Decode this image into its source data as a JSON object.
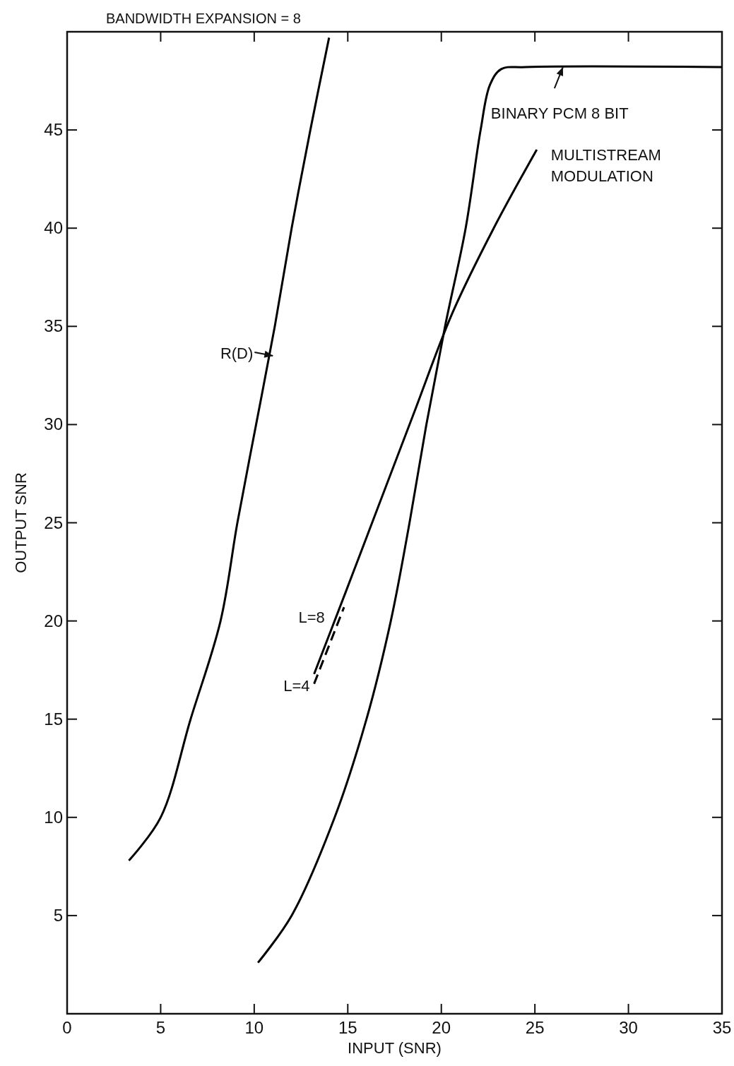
{
  "chart_data": {
    "type": "line",
    "title": "BANDWIDTH EXPANSION = 8",
    "xlabel": "INPUT (SNR)",
    "ylabel": "OUTPUT SNR",
    "xlim": [
      0,
      35
    ],
    "ylim": [
      0,
      50
    ],
    "xticks": [
      0,
      5,
      10,
      15,
      20,
      25,
      30,
      35
    ],
    "yticks": [
      5,
      10,
      15,
      20,
      25,
      30,
      35,
      40,
      45
    ],
    "grid": false,
    "series": [
      {
        "color": "#000000",
        "line_style": "solid",
        "x": [
          3.3,
          5.0,
          6.6,
          8.2,
          9.1,
          10.1,
          11.1,
          12.0,
          13.0,
          14.0
        ],
        "values": [
          7.8,
          10,
          15,
          20,
          25,
          30,
          35,
          40,
          45,
          49.7
        ]
      },
      {
        "color": "#000000",
        "line_style": "solid",
        "x": [
          10.2,
          12.0,
          14.3,
          16.0,
          17.3,
          18.3,
          19.2,
          20.2,
          21.3,
          22.1,
          22.6,
          23.2,
          24.5,
          35
        ],
        "values": [
          2.6,
          5,
          10,
          15,
          20,
          25,
          30,
          35,
          40,
          45,
          47.3,
          48.1,
          48.2,
          48.2
        ]
      },
      {
        "color": "#000000",
        "line_style": "solid",
        "x": [
          13.2,
          14.9,
          16.3,
          18.5,
          20.6,
          22.8,
          25.1
        ],
        "values": [
          17.3,
          21.5,
          25,
          30.5,
          35.7,
          40,
          44
        ]
      },
      {
        "color": "#000000",
        "line_style": "dashed",
        "x": [
          13.2,
          14.8
        ],
        "values": [
          16.8,
          20.7
        ]
      }
    ],
    "annotations": [
      {
        "text": "R(D)",
        "x": 11.0,
        "y": 33.5
      },
      {
        "text": "BINARY PCM 8 BIT",
        "x": 26.5,
        "y": 48.2
      },
      {
        "text": "MULTISTREAM MODULATION",
        "x": 25.1,
        "y": 44
      },
      {
        "text": "L=8",
        "x": 14.3,
        "y": 20.2
      },
      {
        "text": "L=4",
        "x": 13.2,
        "y": 16.8
      }
    ]
  }
}
